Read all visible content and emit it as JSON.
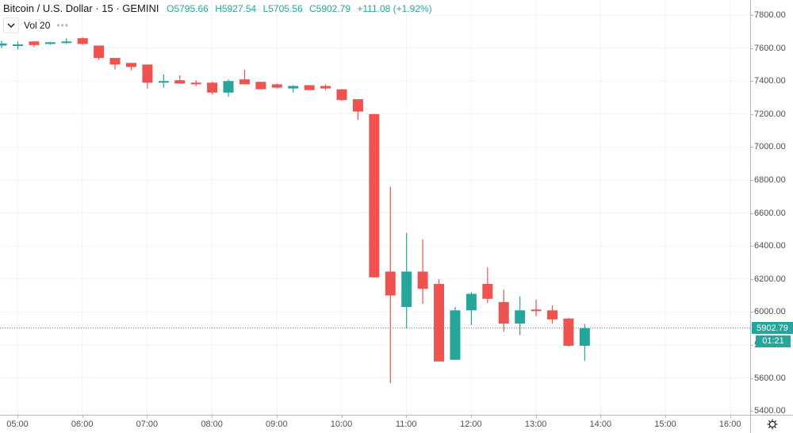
{
  "header": {
    "symbol_title": "Bitcoin / U.S. Dollar · 15 · GEMINI",
    "ohlc": {
      "open": "O5795.66",
      "high": "H5927.54",
      "low": "L5705.56",
      "close": "C5902.79",
      "change": "+111.08 (+1.92%)"
    },
    "volume_indicator": "Vol 20",
    "more_icon": "•••"
  },
  "colors": {
    "up": "#26a69a",
    "down": "#ef5350",
    "grid": "#f0f3fa",
    "axis_text": "#4a4e5a",
    "last_price_line": "#26a69a"
  },
  "price_axis": {
    "last_price_label": "5902.79",
    "countdown_label": "01:21"
  },
  "chart_data": {
    "type": "candlestick",
    "title": "Bitcoin / U.S. Dollar · 15 · GEMINI",
    "xlabel": "",
    "ylabel": "",
    "interval": "15",
    "ylim": [
      5350,
      7900
    ],
    "y_ticks": [
      "7800.00",
      "7600.00",
      "7400.00",
      "7200.00",
      "7000.00",
      "6800.00",
      "6600.00",
      "6400.00",
      "6200.00",
      "6000.00",
      "5800.00",
      "5600.00",
      "5400.00"
    ],
    "x_ticks": [
      "05:00",
      "06:00",
      "07:00",
      "08:00",
      "09:00",
      "10:00",
      "11:00",
      "12:00",
      "13:00",
      "14:00",
      "15:00",
      "16:00"
    ],
    "grid": true,
    "last_price": 5902.79,
    "candles": [
      {
        "time": "04:45",
        "open": 7615,
        "high": 7645,
        "low": 7600,
        "close": 7628
      },
      {
        "time": "05:00",
        "open": 7615,
        "high": 7640,
        "low": 7590,
        "close": 7622
      },
      {
        "time": "05:15",
        "open": 7640,
        "high": 7642,
        "low": 7605,
        "close": 7618
      },
      {
        "time": "05:30",
        "open": 7625,
        "high": 7638,
        "low": 7620,
        "close": 7635
      },
      {
        "time": "05:45",
        "open": 7635,
        "high": 7660,
        "low": 7625,
        "close": 7640
      },
      {
        "time": "06:00",
        "open": 7660,
        "high": 7665,
        "low": 7620,
        "close": 7625
      },
      {
        "time": "06:15",
        "open": 7615,
        "high": 7615,
        "low": 7530,
        "close": 7540
      },
      {
        "time": "06:30",
        "open": 7540,
        "high": 7540,
        "low": 7470,
        "close": 7500
      },
      {
        "time": "06:45",
        "open": 7510,
        "high": 7510,
        "low": 7465,
        "close": 7485
      },
      {
        "time": "07:00",
        "open": 7500,
        "high": 7500,
        "low": 7355,
        "close": 7390
      },
      {
        "time": "07:15",
        "open": 7390,
        "high": 7440,
        "low": 7360,
        "close": 7400
      },
      {
        "time": "07:30",
        "open": 7405,
        "high": 7435,
        "low": 7385,
        "close": 7385
      },
      {
        "time": "07:45",
        "open": 7390,
        "high": 7405,
        "low": 7370,
        "close": 7385
      },
      {
        "time": "08:00",
        "open": 7390,
        "high": 7395,
        "low": 7320,
        "close": 7330
      },
      {
        "time": "08:15",
        "open": 7330,
        "high": 7410,
        "low": 7305,
        "close": 7400
      },
      {
        "time": "08:30",
        "open": 7410,
        "high": 7470,
        "low": 7395,
        "close": 7380
      },
      {
        "time": "08:45",
        "open": 7395,
        "high": 7395,
        "low": 7350,
        "close": 7350
      },
      {
        "time": "09:00",
        "open": 7380,
        "high": 7385,
        "low": 7355,
        "close": 7360
      },
      {
        "time": "09:15",
        "open": 7355,
        "high": 7375,
        "low": 7330,
        "close": 7370
      },
      {
        "time": "09:30",
        "open": 7375,
        "high": 7375,
        "low": 7345,
        "close": 7345
      },
      {
        "time": "09:45",
        "open": 7370,
        "high": 7380,
        "low": 7345,
        "close": 7355
      },
      {
        "time": "10:00",
        "open": 7350,
        "high": 7350,
        "low": 7280,
        "close": 7285
      },
      {
        "time": "10:15",
        "open": 7290,
        "high": 7290,
        "low": 7165,
        "close": 7215
      },
      {
        "time": "10:30",
        "open": 7200,
        "high": 7200,
        "low": 6210,
        "close": 6210
      },
      {
        "time": "10:45",
        "open": 6245,
        "high": 6760,
        "low": 5570,
        "close": 6100
      },
      {
        "time": "11:00",
        "open": 6030,
        "high": 6480,
        "low": 5900,
        "close": 6245
      },
      {
        "time": "11:15",
        "open": 6245,
        "high": 6440,
        "low": 6050,
        "close": 6140
      },
      {
        "time": "11:30",
        "open": 6170,
        "high": 6200,
        "low": 5700,
        "close": 5700
      },
      {
        "time": "11:45",
        "open": 5710,
        "high": 6030,
        "low": 5710,
        "close": 6010
      },
      {
        "time": "12:00",
        "open": 6010,
        "high": 6120,
        "low": 5920,
        "close": 6110
      },
      {
        "time": "12:15",
        "open": 6170,
        "high": 6270,
        "low": 6055,
        "close": 6080
      },
      {
        "time": "12:30",
        "open": 6060,
        "high": 6135,
        "low": 5880,
        "close": 5930
      },
      {
        "time": "12:45",
        "open": 5930,
        "high": 6095,
        "low": 5860,
        "close": 6010
      },
      {
        "time": "13:00",
        "open": 6015,
        "high": 6075,
        "low": 5975,
        "close": 6005
      },
      {
        "time": "13:15",
        "open": 6010,
        "high": 6040,
        "low": 5930,
        "close": 5955
      },
      {
        "time": "13:30",
        "open": 5960,
        "high": 5965,
        "low": 5790,
        "close": 5795
      },
      {
        "time": "13:45",
        "open": 5795,
        "high": 5927,
        "low": 5705,
        "close": 5902
      }
    ]
  }
}
